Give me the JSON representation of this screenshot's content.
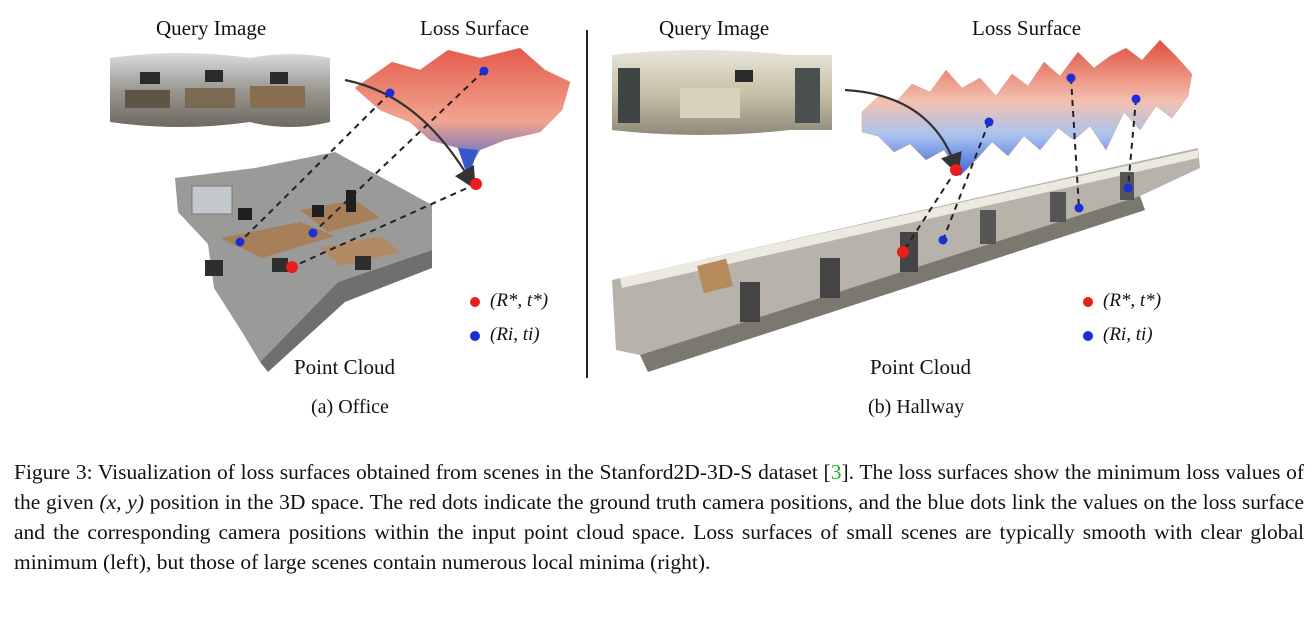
{
  "figure": {
    "panels": [
      {
        "query_label": "Query Image",
        "loss_label": "Loss Surface",
        "cloud_label": "Point Cloud",
        "subcaption": "(a) Office",
        "legend": [
          {
            "label": "(R*, t*)",
            "color": "#e81d1d"
          },
          {
            "label": "(Ri, ti)",
            "color": "#1a2fd6"
          }
        ]
      },
      {
        "query_label": "Query Image",
        "loss_label": "Loss Surface",
        "cloud_label": "Point Cloud",
        "subcaption": "(b) Hallway",
        "legend": [
          {
            "label": "(R*, t*)",
            "color": "#e81d1d"
          },
          {
            "label": "(Ri, ti)",
            "color": "#1a2fd6"
          }
        ]
      }
    ]
  },
  "caption": {
    "prefix": "Figure 3: Visualization of loss surfaces obtained from scenes in the Stanford2D-3D-S dataset [",
    "ref": "3",
    "after_ref": "]. The loss surfaces show the minimum loss values of the given ",
    "math": "(x, y)",
    "rest": " position in the 3D space. The red dots indicate the ground truth camera positions, and the blue dots link the values on the loss surface and the corresponding camera positions within the input point cloud space. Loss surfaces of small scenes are typically smooth with clear global minimum (left), but those of large scenes contain numerous local minima (right)."
  }
}
